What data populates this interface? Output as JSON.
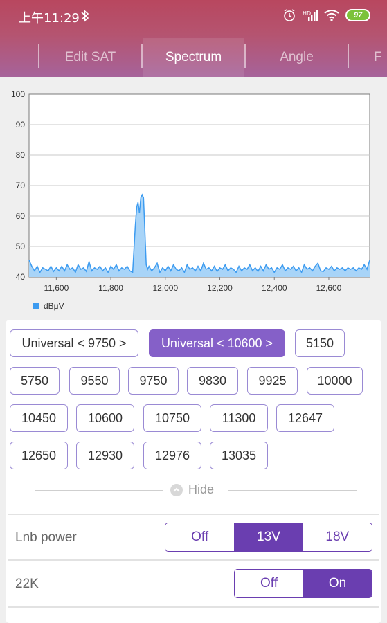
{
  "status_bar": {
    "time": "上午11:29",
    "battery": "97"
  },
  "tabs": [
    {
      "label": "Edit SAT",
      "active": false
    },
    {
      "label": "Spectrum",
      "active": true
    },
    {
      "label": "Angle",
      "active": false
    },
    {
      "label": "F",
      "active": false
    }
  ],
  "chart_data": {
    "type": "area",
    "series": [
      {
        "name": "dBμV",
        "color": "#3c9bf0"
      }
    ],
    "x": [
      11500,
      11510,
      11520,
      11530,
      11540,
      11550,
      11560,
      11570,
      11580,
      11590,
      11600,
      11610,
      11620,
      11630,
      11640,
      11650,
      11660,
      11670,
      11680,
      11690,
      11700,
      11710,
      11720,
      11730,
      11740,
      11750,
      11760,
      11770,
      11780,
      11790,
      11800,
      11810,
      11820,
      11830,
      11840,
      11850,
      11860,
      11870,
      11880,
      11890,
      11895,
      11900,
      11905,
      11910,
      11915,
      11920,
      11925,
      11930,
      11935,
      11940,
      11950,
      11960,
      11970,
      11980,
      11990,
      12000,
      12010,
      12020,
      12030,
      12040,
      12050,
      12060,
      12070,
      12080,
      12090,
      12100,
      12110,
      12120,
      12130,
      12140,
      12150,
      12160,
      12170,
      12180,
      12190,
      12200,
      12210,
      12220,
      12230,
      12240,
      12250,
      12260,
      12270,
      12280,
      12290,
      12300,
      12310,
      12320,
      12330,
      12340,
      12350,
      12360,
      12370,
      12380,
      12390,
      12400,
      12410,
      12420,
      12430,
      12440,
      12450,
      12460,
      12470,
      12480,
      12490,
      12500,
      12510,
      12520,
      12530,
      12540,
      12550,
      12560,
      12570,
      12580,
      12590,
      12600,
      12610,
      12620,
      12630,
      12640,
      12650,
      12660,
      12670,
      12680,
      12690,
      12700,
      12710,
      12720,
      12730,
      12740,
      12750
    ],
    "values": [
      45.5,
      43.5,
      42,
      43.5,
      41.5,
      43,
      42.5,
      42,
      43.5,
      41.8,
      43,
      42,
      43.5,
      42,
      44,
      42.5,
      43,
      41.5,
      44,
      42.5,
      43,
      41.8,
      45,
      42,
      43,
      42.5,
      43.5,
      42,
      43,
      41.5,
      43.5,
      42.5,
      44,
      42,
      43,
      42.5,
      43.5,
      42,
      41.5,
      57,
      63,
      64.5,
      61,
      66,
      67,
      66,
      55,
      44,
      42.5,
      43.5,
      42,
      43,
      44.5,
      41.5,
      43,
      42,
      43.5,
      42,
      44,
      42.5,
      42,
      43,
      41.5,
      44,
      42.5,
      43,
      42,
      43.5,
      42,
      44.5,
      42.5,
      43,
      42,
      43.5,
      41.8,
      43,
      42.5,
      44,
      42,
      43,
      42.5,
      41.5,
      43.5,
      42,
      43,
      42.5,
      44,
      42,
      43,
      41.8,
      43.5,
      42,
      44,
      42.5,
      43,
      41.5,
      43,
      42.5,
      44,
      42,
      43,
      42.5,
      43.5,
      42,
      43,
      41.5,
      44,
      42.5,
      43,
      42,
      43.5,
      44.5,
      42,
      41.8,
      43,
      42.5,
      43.5,
      42,
      43,
      42.5,
      43,
      42,
      43,
      42.5,
      43,
      42,
      43,
      42.5,
      44,
      42.5,
      45.5
    ],
    "xlim": [
      11500,
      12750
    ],
    "ylim": [
      40,
      100
    ],
    "x_ticks": [
      "11,600",
      "11,800",
      "12,000",
      "12,200",
      "12,400",
      "12,600"
    ],
    "x_tick_values": [
      11600,
      11800,
      12000,
      12200,
      12400,
      12600
    ],
    "y_ticks": [
      "40",
      "50",
      "60",
      "70",
      "80",
      "90",
      "100"
    ],
    "y_tick_values": [
      40,
      50,
      60,
      70,
      80,
      90,
      100
    ],
    "grid": true,
    "legend": "bottom-left"
  },
  "lnb_freqs": [
    {
      "label": "Universal < 9750 >",
      "selected": false
    },
    {
      "label": "Universal < 10600 >",
      "selected": true
    },
    {
      "label": "5150",
      "selected": false
    },
    {
      "label": "5750",
      "selected": false
    },
    {
      "label": "9550",
      "selected": false
    },
    {
      "label": "9750",
      "selected": false
    },
    {
      "label": "9830",
      "selected": false
    },
    {
      "label": "9925",
      "selected": false
    },
    {
      "label": "10000",
      "selected": false
    },
    {
      "label": "10450",
      "selected": false
    },
    {
      "label": "10600",
      "selected": false
    },
    {
      "label": "10750",
      "selected": false
    },
    {
      "label": "11300",
      "selected": false
    },
    {
      "label": "12647",
      "selected": false
    },
    {
      "label": "12650",
      "selected": false
    },
    {
      "label": "12930",
      "selected": false
    },
    {
      "label": "12976",
      "selected": false
    },
    {
      "label": "13035",
      "selected": false
    }
  ],
  "hide_label": "Hide",
  "lnb_power": {
    "label": "Lnb power",
    "options": [
      "Off",
      "13V",
      "18V"
    ],
    "selected": "13V"
  },
  "k22": {
    "label": "22K",
    "options": [
      "Off",
      "On"
    ],
    "selected": "On"
  },
  "colors": {
    "accent": "#6a3eb0",
    "chip_selected": "#8560c8",
    "series": "#3c9bf0"
  }
}
